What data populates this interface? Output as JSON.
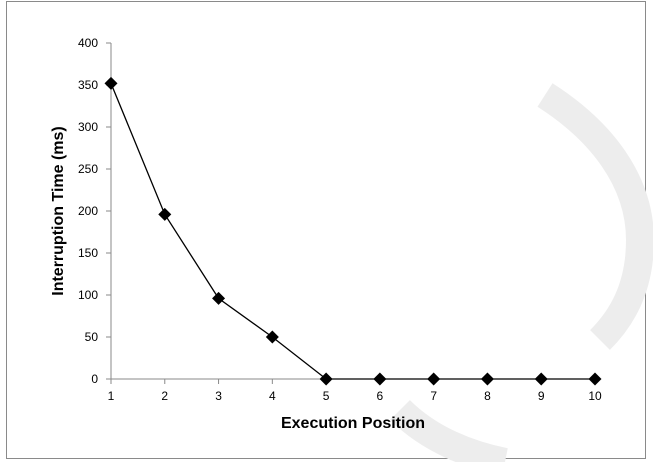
{
  "chart_data": {
    "type": "line",
    "title": "",
    "xlabel": "Execution Position",
    "ylabel": "Interruption Time (ms)",
    "x": [
      1,
      2,
      3,
      4,
      5,
      6,
      7,
      8,
      9,
      10
    ],
    "series": [
      {
        "values": [
          352,
          196,
          96,
          50,
          0,
          0,
          0,
          0,
          0,
          0
        ]
      }
    ],
    "xlim": [
      1,
      10
    ],
    "ylim": [
      0,
      400
    ],
    "yticks": [
      0,
      50,
      100,
      150,
      200,
      250,
      300,
      350,
      400
    ],
    "xticks": [
      1,
      2,
      3,
      4,
      5,
      6,
      7,
      8,
      9,
      10
    ],
    "grid": false,
    "legend": "none",
    "marker": "diamond",
    "line_color": "#000000",
    "marker_color": "#000000"
  }
}
